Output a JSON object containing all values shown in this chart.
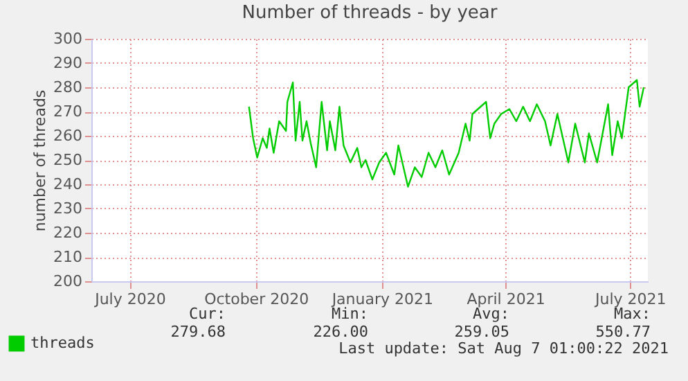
{
  "chart_data": {
    "type": "line",
    "title": "Number of threads - by year",
    "ylabel": "number of threads",
    "x": [
      "2020-09-26",
      "2020-09-29",
      "2020-10-02",
      "2020-10-06",
      "2020-10-09",
      "2020-10-11",
      "2020-10-14",
      "2020-10-18",
      "2020-10-23",
      "2020-10-24",
      "2020-10-28",
      "2020-10-30",
      "2020-11-02",
      "2020-11-04",
      "2020-11-07",
      "2020-11-10",
      "2020-11-14",
      "2020-11-18",
      "2020-11-22",
      "2020-11-24",
      "2020-11-28",
      "2020-12-01",
      "2020-12-04",
      "2020-12-09",
      "2020-12-14",
      "2020-12-17",
      "2020-12-20",
      "2020-12-25",
      "2020-12-30",
      "2021-01-04",
      "2021-01-10",
      "2021-01-13",
      "2021-01-20",
      "2021-01-25",
      "2021-01-30",
      "2021-02-04",
      "2021-02-09",
      "2021-02-14",
      "2021-02-19",
      "2021-02-26",
      "2021-03-03",
      "2021-03-06",
      "2021-03-08",
      "2021-03-14",
      "2021-03-18",
      "2021-03-21",
      "2021-03-24",
      "2021-03-29",
      "2021-04-04",
      "2021-04-09",
      "2021-04-14",
      "2021-04-19",
      "2021-04-24",
      "2021-04-30",
      "2021-05-04",
      "2021-05-09",
      "2021-05-17",
      "2021-05-22",
      "2021-05-29",
      "2021-06-01",
      "2021-06-07",
      "2021-06-15",
      "2021-06-18",
      "2021-06-22",
      "2021-06-25",
      "2021-06-30",
      "2021-07-06",
      "2021-07-08",
      "2021-07-11"
    ],
    "series": [
      {
        "name": "threads",
        "color": "#00cc00",
        "values": [
          272,
          259,
          251,
          259,
          255,
          263,
          253,
          266,
          262,
          274,
          282,
          258,
          274,
          258,
          266,
          257,
          247,
          274,
          254,
          266,
          254,
          272,
          256,
          249,
          255,
          247,
          250,
          242,
          249,
          253,
          244,
          256,
          239,
          247,
          243,
          253,
          247,
          254,
          244,
          253,
          265,
          258,
          269,
          272,
          274,
          259,
          265,
          269,
          271,
          266,
          272,
          266,
          273,
          266,
          256,
          269,
          249,
          265,
          249,
          261,
          249,
          273,
          252,
          266,
          259,
          280,
          283,
          272,
          280
        ]
      }
    ],
    "xlim": [
      "2020-06-03",
      "2021-07-14"
    ],
    "xticks": [
      {
        "value": "2020-07-01",
        "label": "July 2020"
      },
      {
        "value": "2020-10-01",
        "label": "October 2020"
      },
      {
        "value": "2021-01-01",
        "label": "January 2021"
      },
      {
        "value": "2021-04-01",
        "label": "April 2021"
      },
      {
        "value": "2021-07-01",
        "label": "July 2021"
      }
    ],
    "ylim": [
      200,
      300
    ],
    "yticks": [
      200,
      210,
      220,
      230,
      240,
      250,
      260,
      270,
      280,
      290,
      300
    ],
    "grid": true,
    "legend": "bottom left",
    "annotations": [
      "Cur:",
      "279.68",
      "Min:",
      "226.00",
      "Avg:",
      "259.05",
      "Max:",
      "550.77",
      "Last update: Sat Aug  7 01:00:22 2021"
    ]
  }
}
